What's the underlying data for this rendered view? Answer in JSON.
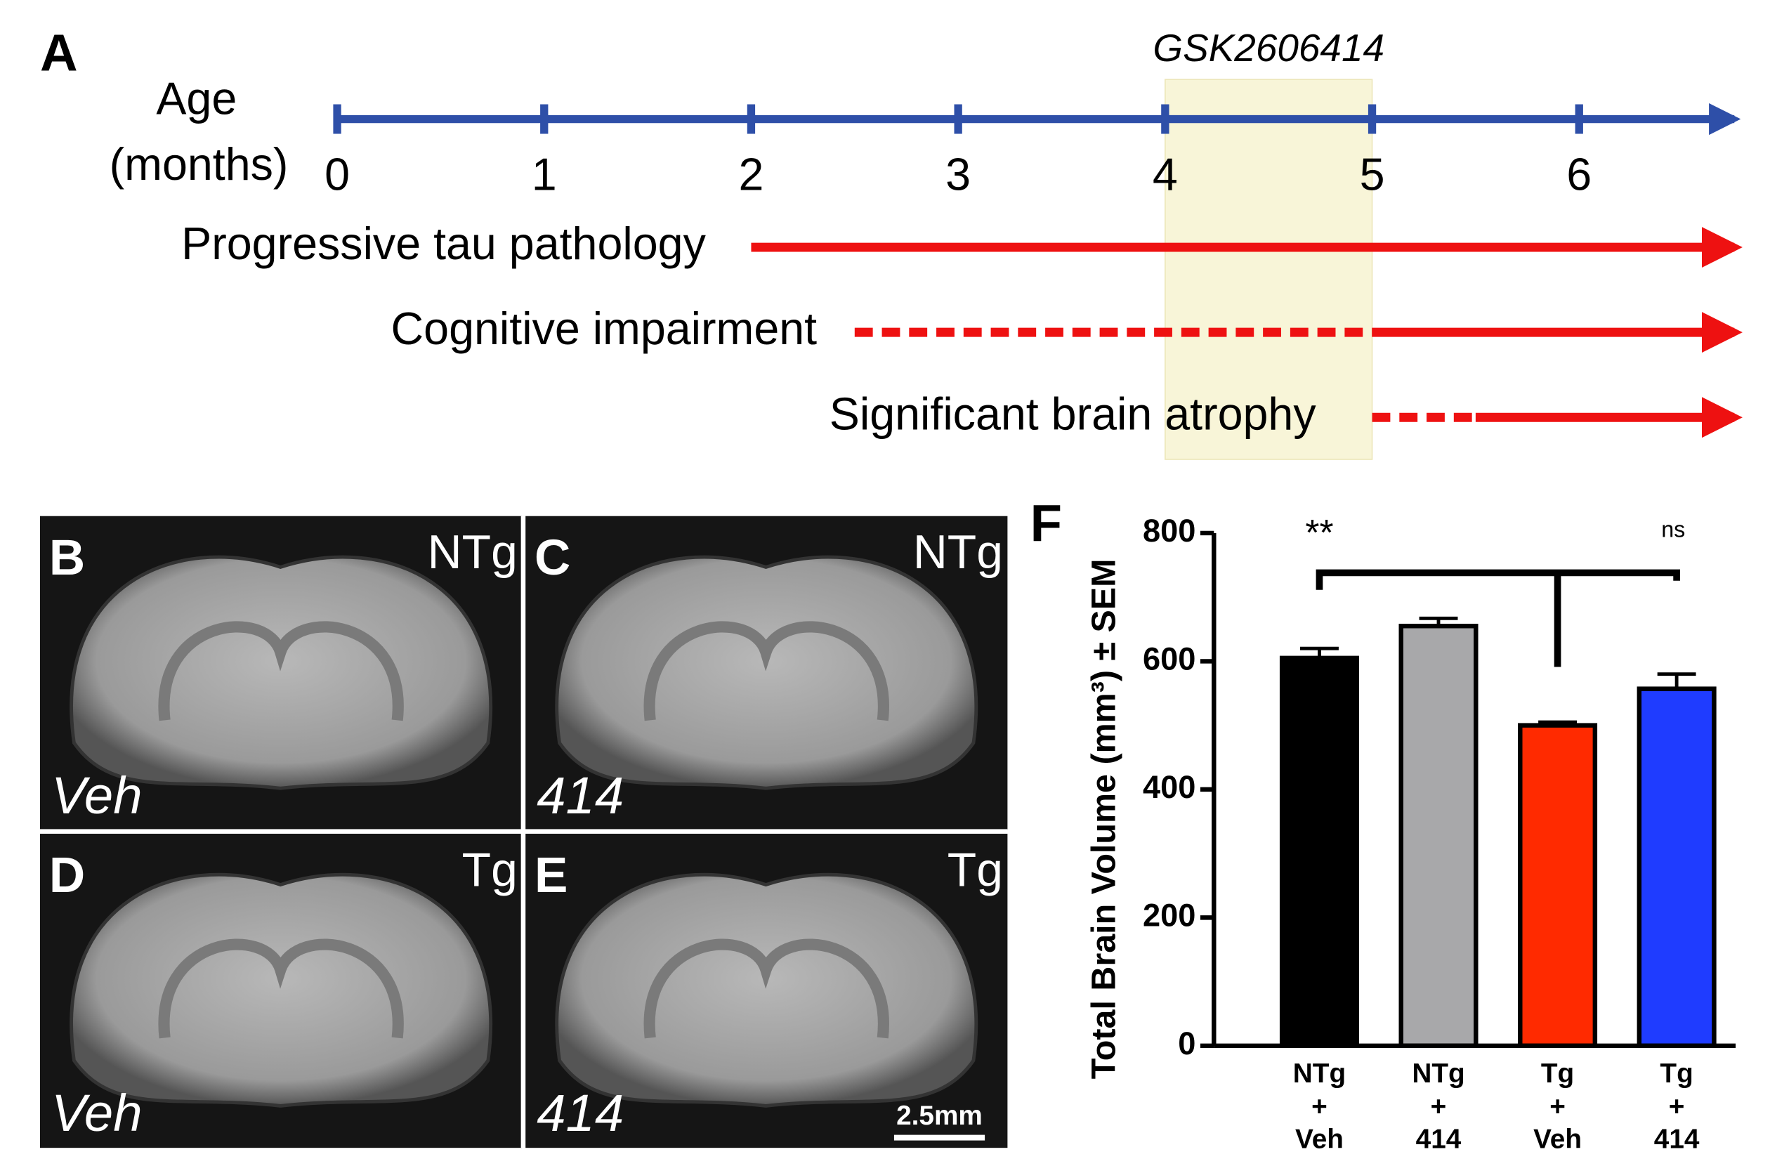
{
  "panel_a": {
    "label": "A",
    "axis_title": [
      "Age",
      "(months)"
    ],
    "ticks": [
      0,
      1,
      2,
      3,
      4,
      5,
      6
    ],
    "axis_end": 6.75,
    "treatment": {
      "label": "GSK2606414",
      "start": 4,
      "end": 5
    },
    "rows": [
      {
        "label": "Progressive tau pathology",
        "dashed_start": null,
        "solid_start": 2
      },
      {
        "label": "Cognitive impairment",
        "dashed_start": 2.5,
        "solid_start": 5
      },
      {
        "label": "Significant brain atrophy",
        "dashed_start": 5,
        "solid_start": 5.5
      }
    ]
  },
  "mri_panels": [
    {
      "label": "B",
      "genotype": "NTg",
      "treatment": "Veh"
    },
    {
      "label": "C",
      "genotype": "NTg",
      "treatment": "414"
    },
    {
      "label": "D",
      "genotype": "Tg",
      "treatment": "Veh"
    },
    {
      "label": "E",
      "genotype": "Tg",
      "treatment": "414",
      "scale_bar": "2.5mm"
    }
  ],
  "chart_data": {
    "type": "bar",
    "panel_label": "F",
    "y_label": "Total Brain Volume (mm³) ± SEM",
    "categories": [
      [
        "NTg",
        "+",
        "Veh"
      ],
      [
        "NTg",
        "+",
        "414"
      ],
      [
        "Tg",
        "+",
        "Veh"
      ],
      [
        "Tg",
        "+",
        "414"
      ]
    ],
    "values": [
      605,
      655,
      500,
      557
    ],
    "errors": [
      15,
      12,
      5,
      23
    ],
    "colors": [
      "#000000",
      "#a8a8aa",
      "#ff2a00",
      "#1f3cff"
    ],
    "ylim": [
      0,
      800
    ],
    "yticks": [
      0,
      200,
      400,
      600,
      800
    ],
    "annotations": [
      "**",
      "ns"
    ]
  }
}
